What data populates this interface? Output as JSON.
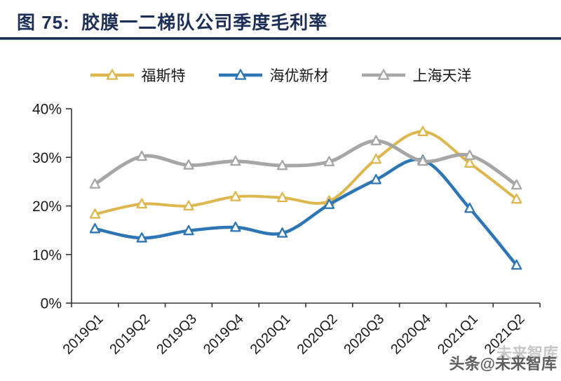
{
  "header": {
    "title": "图 75:  胶膜一二梯队公司季度毛利率"
  },
  "watermark": {
    "main": "头条@未来智库",
    "ghost": "未来智库"
  },
  "colors": {
    "title": "#1d2f56",
    "axis": "#333333",
    "tick_label": "#1a1a1a",
    "foster_yellow": "#DDB74E",
    "haiyou_blue": "#2E75B6",
    "tianyang_gray": "#A6A6A6"
  },
  "chart_data": {
    "type": "line",
    "title": "胶膜一二梯队公司季度毛利率",
    "categories": [
      "2019Q1",
      "2019Q2",
      "2019Q3",
      "2019Q4",
      "2020Q1",
      "2020Q2",
      "2020Q3",
      "2020Q4",
      "2021Q1",
      "2021Q2"
    ],
    "series": [
      {
        "name": "福斯特",
        "color": "#DDB74E",
        "stroke_width": 4,
        "values": [
          18.3,
          20.4,
          20.0,
          21.9,
          21.7,
          21.0,
          29.6,
          35.3,
          28.8,
          21.4
        ]
      },
      {
        "name": "海优新材",
        "color": "#2E75B6",
        "stroke_width": 4.5,
        "values": [
          15.3,
          13.4,
          14.9,
          15.6,
          14.4,
          20.3,
          25.4,
          29.4,
          19.5,
          7.8
        ]
      },
      {
        "name": "上海天洋",
        "color": "#A6A6A6",
        "stroke_width": 5,
        "values": [
          24.5,
          30.2,
          28.4,
          29.2,
          28.3,
          29.1,
          33.4,
          29.2,
          30.4,
          24.3
        ]
      }
    ],
    "y_ticks": [
      {
        "label": "0%",
        "value": 0
      },
      {
        "label": "10%",
        "value": 10
      },
      {
        "label": "20%",
        "value": 20
      },
      {
        "label": "30%",
        "value": 30
      },
      {
        "label": "40%",
        "value": 40
      }
    ],
    "ylim": [
      0,
      40
    ],
    "xlabel": "",
    "ylabel": "",
    "legend_position": "top",
    "marker": "triangle-hollow",
    "smooth": true,
    "grid": false,
    "x_label_rotation": -45
  }
}
